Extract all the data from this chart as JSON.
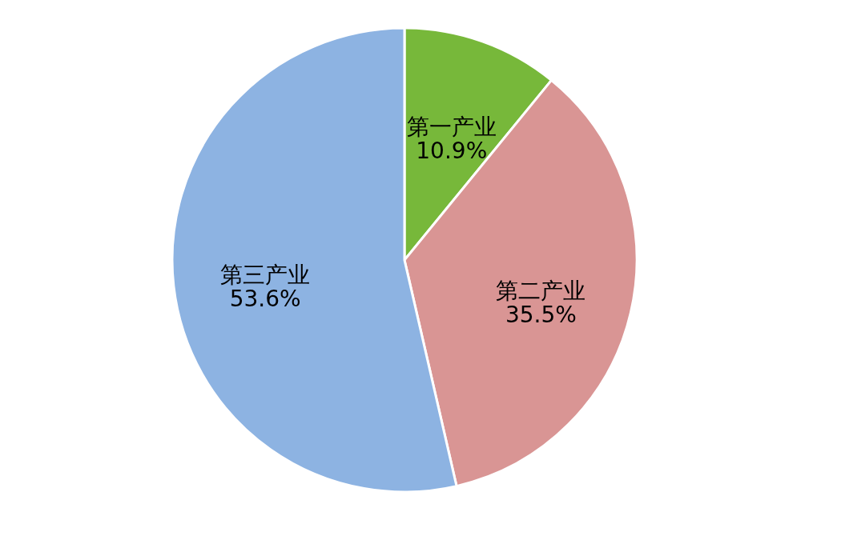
{
  "chart_data": {
    "type": "pie",
    "categories": [
      "第一产业",
      "第二产业",
      "第三产业"
    ],
    "values": [
      10.9,
      35.5,
      53.6
    ],
    "colors": [
      "#77b83a",
      "#d99594",
      "#8db3e2"
    ],
    "value_labels": [
      "10.9%",
      "35.5%",
      "53.6%"
    ]
  }
}
